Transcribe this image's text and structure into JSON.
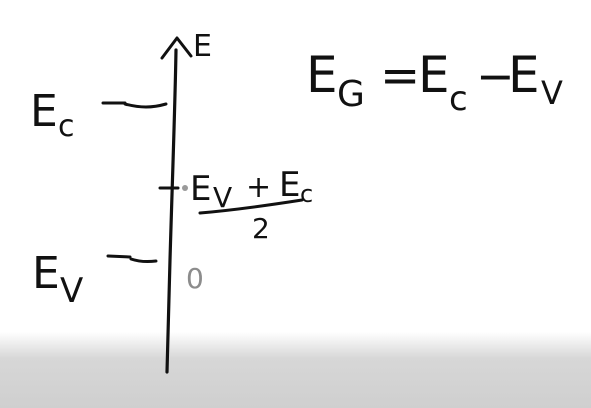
{
  "colors": {
    "ink": "#111111",
    "background": "#ffffff",
    "bottom_shade": "#d3d3d3",
    "cursor_dot": "#9a9a9a"
  },
  "axis": {
    "label": "E"
  },
  "equation": {
    "lhs_main": "E",
    "lhs_sub": "G",
    "equals": "=",
    "term1_main": "E",
    "term1_sub": "c",
    "minus": "−",
    "term2_main": "E",
    "term2_sub": "V"
  },
  "levels": {
    "conduction_main": "E",
    "conduction_sub": "c",
    "valence_main": "E",
    "valence_sub": "V",
    "zero": "0"
  },
  "midgap": {
    "numerator": "E",
    "numerator_sub1": "V",
    "plus": "+",
    "numerator_main2": "E",
    "numerator_sub2": "c",
    "denominator": "2"
  }
}
